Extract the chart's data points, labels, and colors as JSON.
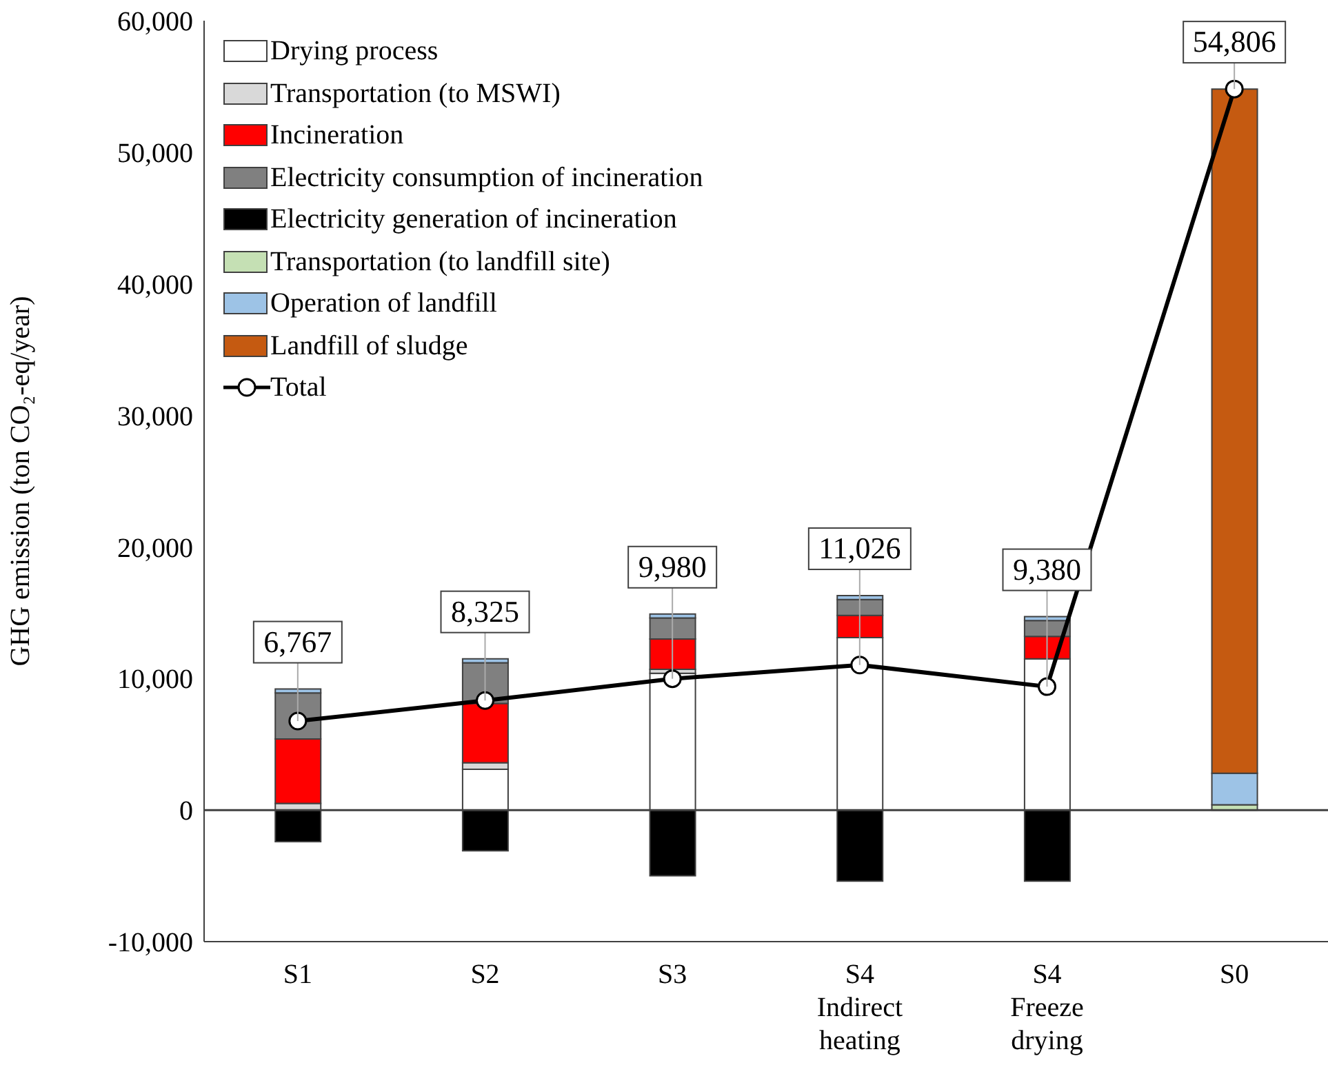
{
  "chart_data": {
    "type": "bar",
    "stacked": true,
    "ylabel": "GHG emission (ton CO₂-eq/year)",
    "categories": [
      "S1",
      "S2",
      "S3",
      "S4 Indirect heating",
      "S4 Freeze drying",
      "S0"
    ],
    "ylim": [
      -10000,
      60000
    ],
    "yticks": [
      {
        "value": -10000,
        "label": "-10,000"
      },
      0,
      {
        "value": 10000,
        "label": "10,000"
      },
      {
        "value": 20000,
        "label": "20,000"
      },
      {
        "value": 30000,
        "label": "30,000"
      },
      {
        "value": 40000,
        "label": "40,000"
      },
      {
        "value": 50000,
        "label": "50,000"
      },
      {
        "value": 60000,
        "label": "60,000"
      }
    ],
    "grid": false,
    "legend": "top left",
    "ref_lines": [
      {
        "axis": "y",
        "value": 0,
        "color": "#404040"
      }
    ],
    "series": [
      {
        "name": "Drying process",
        "color": "#ffffff",
        "values": [
          0,
          3100,
          10400,
          13100,
          11500,
          0
        ]
      },
      {
        "name": "Transportation (to MSWI)",
        "color": "#d9d9d9",
        "values": [
          500,
          500,
          300,
          null,
          null,
          0
        ]
      },
      {
        "name": "Incineration",
        "color": "#ff0000",
        "values": [
          4900,
          4500,
          2300,
          1700,
          1700,
          0
        ]
      },
      {
        "name": "Electricity consumption of incineration",
        "color": "#808080",
        "values": [
          3500,
          3100,
          1600,
          1200,
          1200,
          0
        ]
      },
      {
        "name": "Electricity generation of incineration",
        "color": "#000000",
        "values": [
          -2400,
          -3100,
          -5000,
          -5400,
          -5400,
          0
        ]
      },
      {
        "name": "Transportation (to landfill site)",
        "color": "#c5e0b4",
        "values": [
          0,
          0,
          0,
          0,
          0,
          400
        ]
      },
      {
        "name": "Operation of landfill",
        "color": "#9dc3e6",
        "values": [
          300,
          300,
          300,
          300,
          300,
          2400
        ]
      },
      {
        "name": "Landfill of sludge",
        "color": "#c55a11",
        "values": [
          0,
          0,
          0,
          0,
          0,
          52000
        ]
      },
      {
        "name": "Total",
        "type": "line",
        "color": "#000000",
        "marker": "circle",
        "line_style": "solid",
        "values": [
          6767,
          8325,
          9980,
          11026,
          9380,
          54806
        ],
        "value_labels": [
          "6,767",
          "8,325",
          "9,980",
          "11,026",
          "9,380",
          "54,806"
        ]
      }
    ]
  }
}
